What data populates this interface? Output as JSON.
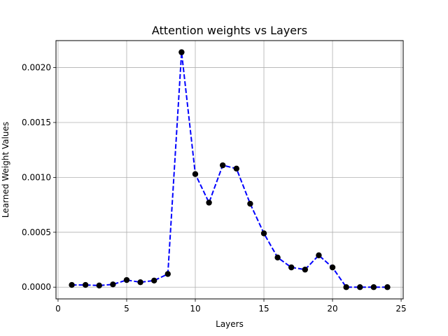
{
  "chart_data": {
    "type": "line",
    "title": "Attention weights vs Layers",
    "xlabel": "Layers",
    "ylabel": "Learned Weight Values",
    "xlim": [
      -0.15,
      25.15
    ],
    "ylim": [
      -0.000107,
      0.002246
    ],
    "x_ticks": [
      0,
      5,
      10,
      15,
      20,
      25
    ],
    "x_tick_labels": [
      "0",
      "5",
      "10",
      "15",
      "20",
      "25"
    ],
    "y_ticks": [
      0.0,
      0.0005,
      0.001,
      0.0015,
      0.002
    ],
    "y_tick_labels": [
      "0.0000",
      "0.0005",
      "0.0010",
      "0.0015",
      "0.0020"
    ],
    "grid": true,
    "line_color": "#0000ff",
    "line_style": "dashed",
    "marker_color": "#000000",
    "x": [
      1,
      2,
      3,
      4,
      5,
      6,
      7,
      8,
      9,
      10,
      11,
      12,
      13,
      14,
      15,
      16,
      17,
      18,
      19,
      20,
      21,
      22,
      23,
      24
    ],
    "values": [
      2e-05,
      2e-05,
      1.5e-05,
      2.5e-05,
      6.5e-05,
      4.5e-05,
      6e-05,
      0.00012,
      0.00214,
      0.00103,
      0.00077,
      0.00111,
      0.00108,
      0.00076,
      0.00049,
      0.00027,
      0.00018,
      0.00016,
      0.00029,
      0.00018,
      0.0,
      0.0,
      0.0,
      0.0
    ]
  }
}
